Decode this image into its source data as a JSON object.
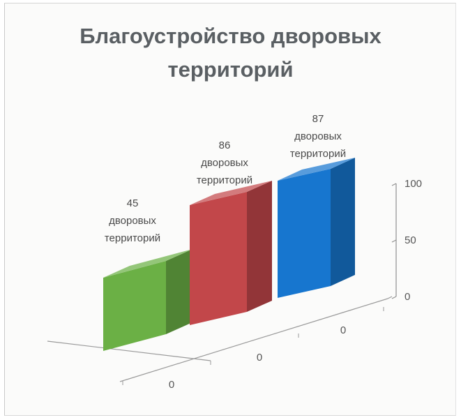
{
  "chart_data": {
    "type": "bar",
    "title_line1": "Благоустройство дворовых",
    "title_line2": "территорий",
    "categories": [
      "0",
      "0",
      "0"
    ],
    "values": [
      45,
      86,
      87
    ],
    "data_labels": [
      [
        "45",
        "дворовых",
        "территорий"
      ],
      [
        "86",
        "дворовых",
        "территорий"
      ],
      [
        "87",
        "дворовых",
        "территорий"
      ]
    ],
    "colors": [
      "#6bb045",
      "#c2474a",
      "#1776cf"
    ],
    "y_ticks": [
      "0",
      "50",
      "100"
    ],
    "ylim": [
      0,
      100
    ],
    "three_d": true,
    "grid": false,
    "legend": "none"
  }
}
